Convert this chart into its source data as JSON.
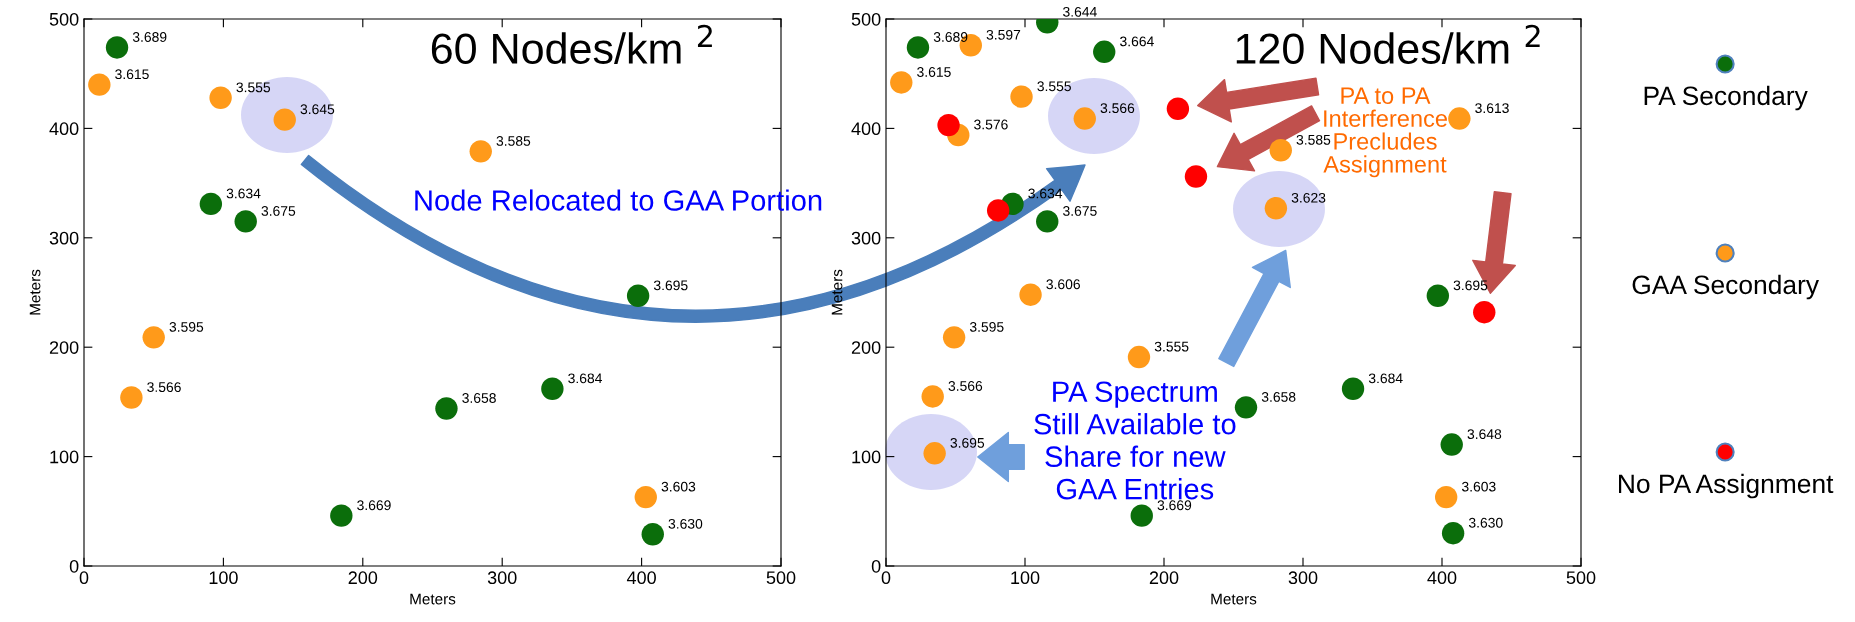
{
  "chart_data": [
    {
      "type": "scatter",
      "title": "60 Nodes/km $^{2}$",
      "xlabel": "Meters",
      "ylabel": "Meters",
      "xlim": [
        0,
        500
      ],
      "ylim": [
        0,
        500
      ],
      "xticks": [
        0,
        100,
        200,
        300,
        400,
        500
      ],
      "yticks": [
        0,
        100,
        200,
        300,
        400,
        500
      ],
      "marker": "circle",
      "annotations": [
        "Node Relocated to GAA Portion",
        {
          "text": "3.689",
          "x": 23.7,
          "y": 474
        },
        {
          "text": "3.634",
          "x": 91,
          "y": 331
        },
        {
          "text": "3.675",
          "x": 116,
          "y": 315
        },
        {
          "text": "3.695",
          "x": 397.5,
          "y": 247
        },
        {
          "text": "3.658",
          "x": 260,
          "y": 144
        },
        {
          "text": "3.684",
          "x": 336,
          "y": 162
        },
        {
          "text": "3.669",
          "x": 184.6,
          "y": 46
        },
        {
          "text": "3.630",
          "x": 408,
          "y": 29
        },
        {
          "text": "3.615",
          "x": 11,
          "y": 440
        },
        {
          "text": "3.555",
          "x": 98,
          "y": 428
        },
        {
          "text": "3.645",
          "x": 144,
          "y": 408
        },
        {
          "text": "3.585",
          "x": 284.6,
          "y": 379
        },
        {
          "text": "3.595",
          "x": 50,
          "y": 209
        },
        {
          "text": "3.566",
          "x": 34,
          "y": 154
        },
        {
          "text": "3.603",
          "x": 403,
          "y": 63
        }
      ],
      "series": [
        {
          "color": "#0b6e0b",
          "x": [
            23.7,
            91,
            116,
            397.5,
            260,
            336,
            184.6,
            408
          ],
          "values": [
            474,
            331,
            315,
            247,
            144,
            162,
            46,
            29
          ]
        },
        {
          "color": "#ff9a1a",
          "x": [
            11,
            98,
            144,
            284.6,
            50,
            34,
            403
          ],
          "values": [
            440,
            428,
            408,
            379,
            209,
            154,
            63
          ]
        }
      ]
    },
    {
      "type": "scatter",
      "title": "120 Nodes/km $^{2}$",
      "xlabel": "Meters",
      "ylabel": "Meters",
      "xlim": [
        0,
        500
      ],
      "ylim": [
        0,
        500
      ],
      "xticks": [
        0,
        100,
        200,
        300,
        400,
        500
      ],
      "yticks": [
        0,
        100,
        200,
        300,
        400,
        500
      ],
      "marker": "circle",
      "legend": "right",
      "annotations": [
        "PA to PA\nInterference\nPrecludes\nAssignment",
        "PA Spectrum\nStill Available to\nShare for new\nGAA Entries",
        {
          "text": "3.689",
          "x": 23,
          "y": 474
        },
        {
          "text": "3.644",
          "x": 116,
          "y": 497
        },
        {
          "text": "3.664",
          "x": 157,
          "y": 470
        },
        {
          "text": "3.634",
          "x": 91,
          "y": 331
        },
        {
          "text": "3.675",
          "x": 116,
          "y": 315
        },
        {
          "text": "3.695",
          "x": 397,
          "y": 247
        },
        {
          "text": "3.684",
          "x": 336,
          "y": 162
        },
        {
          "text": "3.658",
          "x": 259,
          "y": 145
        },
        {
          "text": "3.669",
          "x": 184,
          "y": 46
        },
        {
          "text": "3.648",
          "x": 407,
          "y": 111
        },
        {
          "text": "3.630",
          "x": 408,
          "y": 30
        },
        {
          "text": "3.597",
          "x": 61,
          "y": 476
        },
        {
          "text": "3.615",
          "x": 11,
          "y": 442
        },
        {
          "text": "3.555",
          "x": 97.5,
          "y": 429
        },
        {
          "text": "3.576",
          "x": 52,
          "y": 394
        },
        {
          "text": "3.566",
          "x": 143,
          "y": 409
        },
        {
          "text": "3.585",
          "x": 284,
          "y": 380
        },
        {
          "text": "3.623",
          "x": 280.5,
          "y": 327
        },
        {
          "text": "3.613",
          "x": 412.5,
          "y": 409
        },
        {
          "text": "3.606",
          "x": 104,
          "y": 248
        },
        {
          "text": "3.595",
          "x": 49,
          "y": 209
        },
        {
          "text": "3.555",
          "x": 182,
          "y": 191
        },
        {
          "text": "3.566",
          "x": 33.6,
          "y": 155
        },
        {
          "text": "3.695",
          "x": 35,
          "y": 103
        },
        {
          "text": "3.603",
          "x": 403,
          "y": 63
        }
      ],
      "series": [
        {
          "name": "PA Secondary",
          "color": "#0b6e0b",
          "x": [
            23,
            116,
            157,
            91,
            116,
            397,
            336,
            259,
            184,
            407,
            408
          ],
          "values": [
            474,
            497,
            470,
            331,
            315,
            247,
            162,
            145,
            46,
            111,
            30
          ]
        },
        {
          "name": "GAA Secondary",
          "color": "#ff9a1a",
          "x": [
            61,
            11,
            97.5,
            52,
            143,
            284,
            280.5,
            412.5,
            104,
            49,
            182,
            33.6,
            35,
            403
          ],
          "values": [
            476,
            442,
            429,
            394,
            409,
            380,
            327,
            409,
            248,
            209,
            191,
            155,
            103,
            63
          ]
        },
        {
          "name": "No PA Assignment",
          "color": "#ff0000",
          "x": [
            45,
            210,
            223,
            80.7,
            430.4
          ],
          "values": [
            403,
            418,
            356,
            325,
            232
          ]
        }
      ]
    }
  ]
}
